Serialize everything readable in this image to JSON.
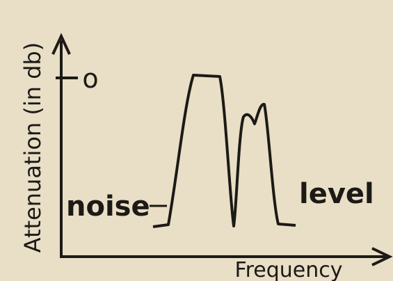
{
  "axis_labels": {
    "y": "Attenuation (in db)",
    "x": "Frequency"
  },
  "y_tick": "o",
  "annotations": [
    "noise",
    "level"
  ]
}
